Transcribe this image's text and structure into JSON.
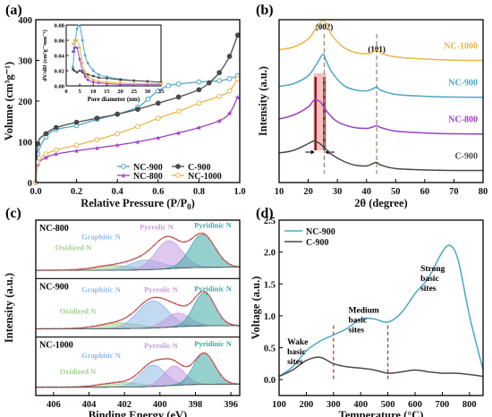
{
  "chart_data": [
    {
      "panel": "(a)",
      "type": "line",
      "xlabel": "Relative Pressure (P/P",
      "xlabel_sub": "0",
      "xlabel_end": ")",
      "ylabel": "Volume (cm",
      "ylabel_full": "Volume (cm³g⁻¹)",
      "xlim": [
        0,
        1.0
      ],
      "ylim": [
        0,
        400
      ],
      "xticks": [
        "0.0",
        "0.2",
        "0.4",
        "0.6",
        "0.8",
        "1.0"
      ],
      "yticks": [
        "0",
        "100",
        "200",
        "300",
        "400"
      ],
      "legend_placement": "lower-right",
      "series": [
        {
          "name": "NC-900",
          "color": "#4BA7C4",
          "marker": "circle-open",
          "x": [
            0.0,
            0.01,
            0.05,
            0.1,
            0.2,
            0.3,
            0.4,
            0.5,
            0.55,
            0.6,
            0.65,
            0.7,
            0.8,
            0.9,
            0.95,
            0.99
          ],
          "y": [
            0,
            70,
            112,
            130,
            140,
            155,
            168,
            185,
            205,
            225,
            238,
            242,
            247,
            250,
            255,
            262
          ]
        },
        {
          "name": "C-900",
          "color": "#4A4A4A",
          "marker": "circle-filled",
          "x": [
            0.0,
            0.01,
            0.05,
            0.1,
            0.2,
            0.3,
            0.4,
            0.5,
            0.6,
            0.7,
            0.8,
            0.85,
            0.9,
            0.95,
            0.99
          ],
          "y": [
            0,
            95,
            120,
            135,
            148,
            158,
            168,
            180,
            195,
            210,
            228,
            245,
            270,
            310,
            362
          ]
        },
        {
          "name": "NC-800",
          "color": "#9B3FC8",
          "marker": "star",
          "x": [
            0.0,
            0.01,
            0.05,
            0.1,
            0.2,
            0.3,
            0.4,
            0.5,
            0.6,
            0.7,
            0.8,
            0.9,
            0.95,
            0.99
          ],
          "y": [
            0,
            45,
            62,
            70,
            78,
            85,
            92,
            100,
            110,
            122,
            135,
            152,
            170,
            210
          ]
        },
        {
          "name": "NC-1000",
          "color": "#E8B64A",
          "marker": "circle-open",
          "x": [
            0.0,
            0.01,
            0.05,
            0.1,
            0.2,
            0.3,
            0.4,
            0.5,
            0.6,
            0.7,
            0.8,
            0.9,
            0.95,
            0.99
          ],
          "y": [
            0,
            50,
            70,
            80,
            92,
            105,
            120,
            138,
            158,
            175,
            195,
            212,
            225,
            255
          ]
        }
      ],
      "inset": {
        "xlabel": "Pore diameter (nm)",
        "ylabel": "dV/dD (cm³g⁻¹nm⁻¹)",
        "xlim": [
          0,
          35
        ],
        "ylim": [
          0,
          0.08
        ],
        "xticks": [
          "0",
          "5",
          "10",
          "15",
          "20",
          "25",
          "30",
          "35"
        ],
        "yticks": [
          "0.00",
          "0.02",
          "0.04",
          "0.06",
          "0.08"
        ],
        "series": [
          {
            "name": "NC-900",
            "color": "#4BA7C4",
            "x": [
              2.5,
              3,
              4,
              5,
              6,
              7,
              8,
              10,
              12,
              15,
              20,
              25,
              30,
              35
            ],
            "y": [
              0.025,
              0.045,
              0.075,
              0.079,
              0.06,
              0.04,
              0.03,
              0.02,
              0.015,
              0.012,
              0.009,
              0.007,
              0.006,
              0.005
            ]
          },
          {
            "name": "C-900",
            "color": "#4A4A4A",
            "x": [
              2.5,
              3,
              4,
              5,
              6,
              7,
              8,
              10,
              12,
              15,
              20,
              25,
              30,
              35
            ],
            "y": [
              0.022,
              0.02,
              0.018,
              0.02,
              0.018,
              0.016,
              0.015,
              0.013,
              0.011,
              0.01,
              0.008,
              0.007,
              0.006,
              0.005
            ]
          },
          {
            "name": "NC-800",
            "color": "#9B3FC8",
            "x": [
              2.5,
              3,
              4,
              5,
              6,
              7,
              8,
              10,
              12,
              15,
              20,
              25,
              30,
              35
            ],
            "y": [
              0.045,
              0.05,
              0.05,
              0.035,
              0.02,
              0.012,
              0.008,
              0.005,
              0.004,
              0.003,
              0.002,
              0.002,
              0.002,
              0.002
            ]
          },
          {
            "name": "NC-1000",
            "color": "#E8B64A",
            "x": [
              2.5,
              3,
              4,
              5,
              6,
              7,
              8,
              10,
              12,
              15,
              20,
              25,
              30,
              35
            ],
            "y": [
              0.055,
              0.06,
              0.06,
              0.05,
              0.03,
              0.018,
              0.012,
              0.008,
              0.006,
              0.005,
              0.004,
              0.003,
              0.003,
              0.003
            ]
          }
        ]
      }
    },
    {
      "panel": "(b)",
      "type": "line",
      "xlabel": "2θ (degree)",
      "ylabel": "Intensity (a.u.)",
      "xlim": [
        10,
        80
      ],
      "xticks": [
        "10",
        "20",
        "30",
        "40",
        "50",
        "60",
        "70",
        "80"
      ],
      "peak_labels": [
        "(002)",
        "(101)"
      ],
      "peak_positions": [
        25.5,
        43.5
      ],
      "series": [
        {
          "name": "NC-1000",
          "color": "#E8B64A",
          "offset": 3.0,
          "x": [
            10,
            15,
            20,
            23,
            25,
            26,
            28,
            32,
            36,
            40,
            42,
            43.5,
            45,
            50,
            60,
            70,
            80
          ],
          "y": [
            0.45,
            0.55,
            0.85,
            1.3,
            1.55,
            1.45,
            1.0,
            0.55,
            0.35,
            0.3,
            0.35,
            0.45,
            0.32,
            0.18,
            0.1,
            0.06,
            0.05
          ]
        },
        {
          "name": "NC-900",
          "color": "#4BA7C4",
          "offset": 2.0,
          "x": [
            10,
            15,
            20,
            23,
            25,
            26,
            28,
            32,
            36,
            40,
            42,
            43.5,
            45,
            50,
            60,
            70,
            80
          ],
          "y": [
            0.45,
            0.55,
            0.85,
            1.3,
            1.65,
            1.45,
            1.0,
            0.5,
            0.32,
            0.28,
            0.35,
            0.42,
            0.3,
            0.15,
            0.08,
            0.05,
            0.04
          ]
        },
        {
          "name": "NC-800",
          "color": "#9B3FC8",
          "offset": 1.0,
          "x": [
            10,
            15,
            20,
            22,
            24,
            25,
            27,
            30,
            35,
            40,
            42,
            43.5,
            45,
            50,
            60,
            70,
            80
          ],
          "y": [
            0.6,
            0.75,
            1.05,
            1.3,
            1.25,
            1.1,
            0.8,
            0.5,
            0.3,
            0.25,
            0.3,
            0.35,
            0.28,
            0.15,
            0.08,
            0.05,
            0.04
          ]
        },
        {
          "name": "C-900",
          "color": "#4A4A4A",
          "offset": 0.0,
          "x": [
            10,
            15,
            20,
            22,
            24,
            26,
            28,
            32,
            36,
            40,
            42,
            43.5,
            45,
            50,
            60,
            70,
            80
          ],
          "y": [
            0.7,
            0.8,
            1.05,
            1.15,
            1.05,
            0.85,
            0.65,
            0.4,
            0.25,
            0.22,
            0.3,
            0.35,
            0.25,
            0.12,
            0.07,
            0.05,
            0.05
          ]
        }
      ]
    },
    {
      "panel": "(c)",
      "type": "area",
      "xlabel": "Binding Energy (eV)",
      "ylabel": "Intensity (a.u.)",
      "xlim": [
        407,
        395.5
      ],
      "xticks": [
        "406",
        "404",
        "402",
        "400",
        "398",
        "396"
      ],
      "subpanels": [
        {
          "name": "NC-800",
          "components": [
            {
              "name": "Oxidized N",
              "color": "#9FD08A",
              "center": 402.6,
              "height": 0.12,
              "width": 1.1
            },
            {
              "name": "Graphitic N",
              "color": "#8FB9E8",
              "center": 400.8,
              "height": 0.25,
              "width": 0.9
            },
            {
              "name": "Pyrrolic N",
              "color": "#C59BE0",
              "center": 399.5,
              "height": 0.72,
              "width": 0.75
            },
            {
              "name": "Pyridinic N",
              "color": "#3FA9A4",
              "center": 397.6,
              "height": 0.85,
              "width": 0.7
            }
          ]
        },
        {
          "name": "NC-900",
          "components": [
            {
              "name": "Oxidized N",
              "color": "#9FD08A",
              "center": 402.3,
              "height": 0.15,
              "width": 1.1
            },
            {
              "name": "Graphitic N",
              "color": "#8FB9E8",
              "center": 400.4,
              "height": 0.7,
              "width": 0.85
            },
            {
              "name": "Pyrrolic N",
              "color": "#C59BE0",
              "center": 399.0,
              "height": 0.35,
              "width": 0.7
            },
            {
              "name": "Pyridinic N",
              "color": "#3FA9A4",
              "center": 397.5,
              "height": 0.85,
              "width": 0.6
            }
          ]
        },
        {
          "name": "NC-1000",
          "components": [
            {
              "name": "Oxidized N",
              "color": "#9FD08A",
              "center": 402.2,
              "height": 0.12,
              "width": 1.1
            },
            {
              "name": "Graphitic N",
              "color": "#8FB9E8",
              "center": 400.4,
              "height": 0.55,
              "width": 0.7
            },
            {
              "name": "Pyrrolic N",
              "color": "#C59BE0",
              "center": 399.2,
              "height": 0.5,
              "width": 0.6
            },
            {
              "name": "Pyridinic N",
              "color": "#3FA9A4",
              "center": 397.5,
              "height": 0.8,
              "width": 0.6
            }
          ]
        }
      ]
    },
    {
      "panel": "(d)",
      "type": "line",
      "xlabel": "Temperature (°C)",
      "ylabel": "Voltage (a.u.)",
      "xlim": [
        100,
        850
      ],
      "ylim": [
        -0.25,
        2.5
      ],
      "xticks": [
        "100",
        "200",
        "300",
        "400",
        "500",
        "600",
        "700",
        "800"
      ],
      "yticks": [
        "0.0",
        "0.5",
        "1.0",
        "1.5",
        "2.0",
        "2.5"
      ],
      "legend_placement": "top-left",
      "dashed_lines_x": [
        300,
        500
      ],
      "annotations": [
        {
          "text": [
            "Wake",
            "basic",
            "sites"
          ],
          "x": 130,
          "y": 0.55
        },
        {
          "text": [
            "Medium",
            "basic",
            "sites"
          ],
          "x": 355,
          "y": 1.05
        },
        {
          "text": [
            "Strong",
            "basic",
            "sites"
          ],
          "x": 620,
          "y": 1.7
        }
      ],
      "series": [
        {
          "name": "NC-900",
          "color": "#4BA7C4",
          "x": [
            100,
            150,
            200,
            250,
            300,
            350,
            400,
            450,
            500,
            550,
            600,
            650,
            700,
            730,
            760,
            800,
            850
          ],
          "y": [
            0.05,
            0.2,
            0.45,
            0.6,
            0.7,
            0.8,
            0.95,
            0.95,
            0.9,
            1.05,
            1.35,
            1.6,
            2.0,
            2.1,
            1.85,
            1.0,
            0.15
          ]
        },
        {
          "name": "C-900",
          "color": "#4A4A4A",
          "x": [
            100,
            150,
            200,
            250,
            300,
            350,
            400,
            450,
            500,
            550,
            600,
            650,
            700,
            750,
            800,
            850
          ],
          "y": [
            0.05,
            0.15,
            0.3,
            0.35,
            0.25,
            0.2,
            0.18,
            0.15,
            0.1,
            0.12,
            0.15,
            0.12,
            0.1,
            0.1,
            0.08,
            0.05
          ]
        }
      ]
    }
  ]
}
